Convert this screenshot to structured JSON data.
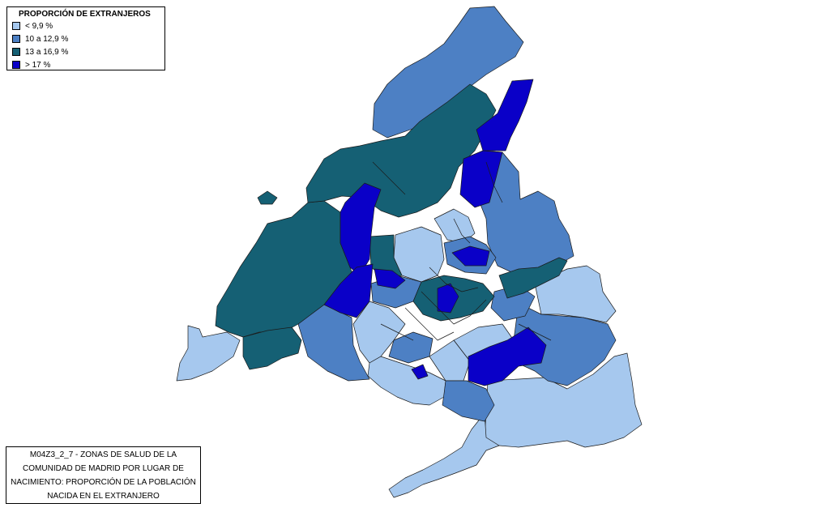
{
  "legend": {
    "title": "PROPORCIÓN DE EXTRANJEROS",
    "items": [
      {
        "label": "< 9,9 %",
        "color": "#a6c8ee"
      },
      {
        "label": "10 a 12,9 %",
        "color": "#4d80c4"
      },
      {
        "label": "13 a 16,9 %",
        "color": "#156074"
      },
      {
        "label": "> 17 %",
        "color": "#0a00c8"
      }
    ]
  },
  "caption": {
    "lines": [
      "M04Z3_2_7 - ZONAS DE SALUD DE LA",
      "COMUNIDAD DE MADRID POR LUGAR DE",
      "NACIMIENTO: PROPORCIÓN DE LA POBLACIÓN",
      "NACIDA EN EL EXTRANJERO"
    ]
  }
}
